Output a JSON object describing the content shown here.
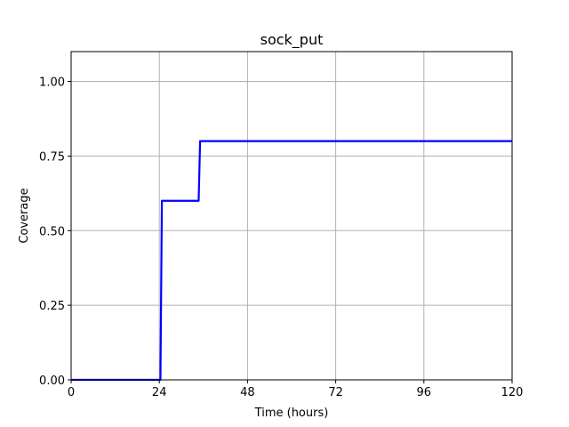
{
  "chart_data": {
    "type": "line",
    "title": "sock_put",
    "xlabel": "Time (hours)",
    "ylabel": "Coverage",
    "xlim": [
      0,
      120
    ],
    "ylim": [
      0,
      1.1
    ],
    "xticks": [
      0,
      24,
      48,
      72,
      96,
      120
    ],
    "xtick_labels": [
      "0",
      "24",
      "48",
      "72",
      "96",
      "120"
    ],
    "yticks": [
      0,
      0.25,
      0.5,
      0.75,
      1.0
    ],
    "ytick_labels": [
      "0.00",
      "0.25",
      "0.50",
      "0.75",
      "1.00"
    ],
    "grid": true,
    "series": [
      {
        "color": "#0000ff",
        "step": true,
        "x": [
          0,
          24.3,
          24.7,
          34.7,
          35.1,
          120
        ],
        "y": [
          0,
          0,
          0.6,
          0.6,
          0.8,
          0.8
        ]
      }
    ]
  }
}
